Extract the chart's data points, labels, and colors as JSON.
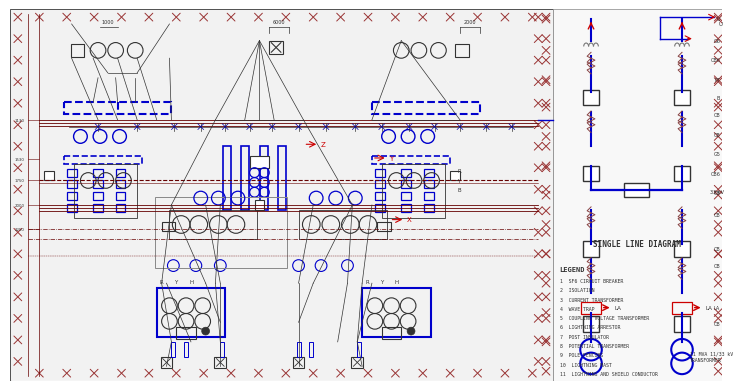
{
  "bg_color": "#ffffff",
  "drawing_bg": "#f8f8f8",
  "lc_blue": "#0000cc",
  "lc_dark": "#333333",
  "lc_red": "#cc0000",
  "lc_maroon": "#660000",
  "lc_cross": "#993333",
  "lc_gray": "#888888",
  "sld_label": "SINGLE LINE DIAGRAM",
  "legend_title": "LEGEND",
  "legend_items": [
    "SF6 CIRCUIT BREAKER",
    "ISOLATION",
    "CURRENT TRANSFORMER",
    "WAVE TRAP",
    "COUPLING VOLTAGE TRANSFORMER",
    "LIGHTNING ARRESTOR",
    "POST INSULATOR",
    "POTENTIAL TRANSFORMER",
    "POLE FENCING",
    "LIGHTNING MAST",
    "LIGHTNING AND SHIELD CONDUCTOR"
  ],
  "transformer_label": "11 MVA 11/33 kV\nTRANSFORMER"
}
